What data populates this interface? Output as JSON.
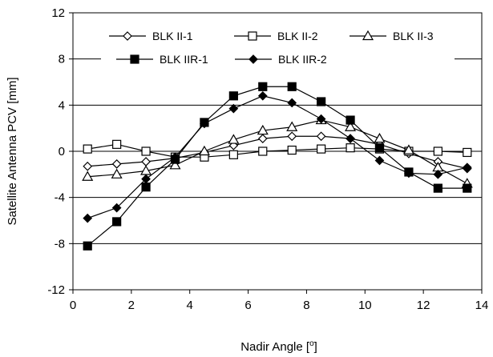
{
  "chart_data": {
    "type": "line",
    "xlabel": "Nadir Angle [",
    "xlabel_unit_sup": "o",
    "xlabel_suffix": "]",
    "ylabel": "Satellite Antenna PCV [mm]",
    "xlim": [
      0,
      14
    ],
    "ylim": [
      -12,
      12
    ],
    "xticks": [
      0,
      2,
      4,
      6,
      8,
      10,
      12,
      14
    ],
    "yticks": [
      -12,
      -8,
      -4,
      0,
      4,
      8,
      12
    ],
    "grid": "horizontal",
    "legend_position": "top",
    "x": [
      0.5,
      1.5,
      2.5,
      3.5,
      4.5,
      5.5,
      6.5,
      7.5,
      8.5,
      9.5,
      10.5,
      11.5,
      12.5,
      13.5
    ],
    "series": [
      {
        "name": "BLK II-1",
        "marker": "diamond-open",
        "values": [
          -1.3,
          -1.1,
          -0.9,
          -0.6,
          -0.1,
          0.5,
          1.1,
          1.3,
          1.3,
          1.1,
          0.6,
          -0.2,
          -0.9,
          -1.5
        ]
      },
      {
        "name": "BLK II-2",
        "marker": "square-open",
        "values": [
          0.2,
          0.6,
          0.0,
          -0.5,
          -0.5,
          -0.3,
          0.0,
          0.1,
          0.2,
          0.3,
          0.2,
          0.0,
          0.0,
          -0.1
        ]
      },
      {
        "name": "BLK II-3",
        "marker": "triangle-open",
        "values": [
          -2.2,
          -2.0,
          -1.7,
          -1.2,
          0.0,
          1.0,
          1.8,
          2.1,
          2.7,
          2.1,
          1.1,
          0.1,
          -1.4,
          -2.8
        ]
      },
      {
        "name": "BLK IIR-1",
        "marker": "square-filled",
        "values": [
          -8.2,
          -6.1,
          -3.1,
          -0.7,
          2.5,
          4.8,
          5.6,
          5.6,
          4.3,
          2.7,
          0.3,
          -1.8,
          -3.2,
          -3.2
        ]
      },
      {
        "name": "BLK IIR-2",
        "marker": "diamond-filled",
        "values": [
          -5.8,
          -4.9,
          -2.4,
          -0.5,
          2.4,
          3.7,
          4.8,
          4.2,
          2.8,
          1.1,
          -0.8,
          -1.9,
          -2.0,
          -1.4
        ]
      }
    ]
  }
}
